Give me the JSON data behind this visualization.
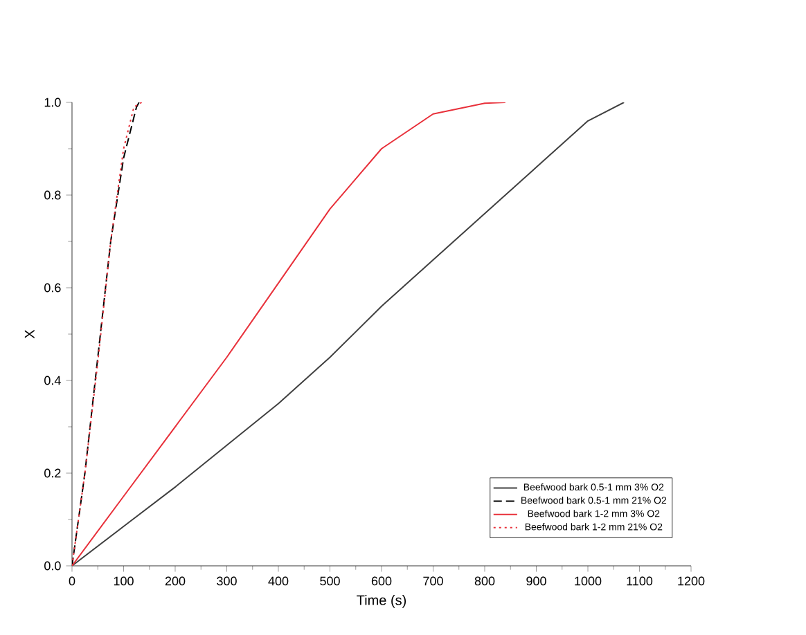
{
  "chart_data": {
    "type": "line",
    "xlabel": "Time (s)",
    "ylabel": "X",
    "xlim": [
      0,
      1200
    ],
    "ylim": [
      0,
      1.0
    ],
    "xticks": [
      0,
      100,
      200,
      300,
      400,
      500,
      600,
      700,
      800,
      900,
      1000,
      1100,
      1200
    ],
    "yticks": [
      {
        "value": 0,
        "label": "0.0"
      },
      {
        "value": 0.2,
        "label": "0.2"
      },
      {
        "value": 0.4,
        "label": "0.4"
      },
      {
        "value": 0.6,
        "label": "0.6"
      },
      {
        "value": 0.8,
        "label": "0.8"
      },
      {
        "value": 1.0,
        "label": "1.0"
      }
    ],
    "legend": "bottom right",
    "grid": false,
    "series": [
      {
        "name": "Beefwood bark 0.5-1 mm 3% O2",
        "color": "#404040",
        "line_style": "solid",
        "x": [
          0,
          100,
          200,
          300,
          400,
          500,
          600,
          700,
          800,
          900,
          950,
          1000,
          1070
        ],
        "values": [
          0,
          0.085,
          0.17,
          0.26,
          0.35,
          0.45,
          0.56,
          0.66,
          0.76,
          0.86,
          0.91,
          0.96,
          1.0
        ]
      },
      {
        "name": "Beefwood bark 0.5-1 mm 21% O2",
        "color": "#000000",
        "line_style": "dashed",
        "x": [
          0,
          25,
          50,
          75,
          100,
          125,
          130
        ],
        "values": [
          0,
          0.2,
          0.45,
          0.7,
          0.88,
          0.99,
          1.0
        ]
      },
      {
        "name": "Beefwood bark 1-2 mm 3% O2",
        "color": "#e8303a",
        "line_style": "solid",
        "x": [
          0,
          100,
          200,
          300,
          400,
          500,
          600,
          700,
          800,
          840
        ],
        "values": [
          0,
          0.15,
          0.3,
          0.45,
          0.61,
          0.77,
          0.9,
          0.975,
          0.998,
          1.0
        ]
      },
      {
        "name": "Beefwood bark 1-2 mm 21% O2",
        "color": "#e8303a",
        "line_style": "dotted",
        "x": [
          0,
          25,
          50,
          75,
          100,
          120,
          135
        ],
        "values": [
          0,
          0.2,
          0.44,
          0.7,
          0.9,
          0.99,
          1.0
        ]
      }
    ]
  }
}
